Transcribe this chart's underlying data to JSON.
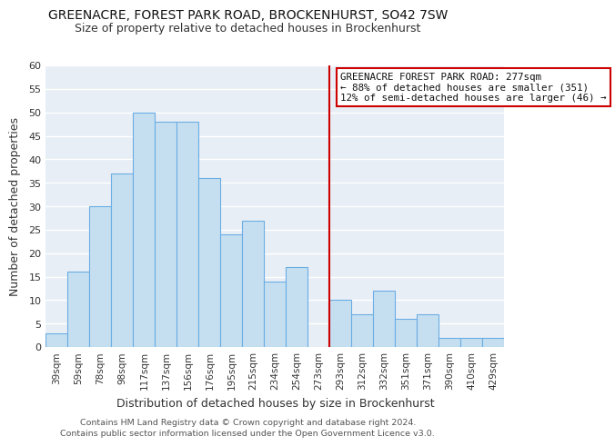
{
  "title": "GREENACRE, FOREST PARK ROAD, BROCKENHURST, SO42 7SW",
  "subtitle": "Size of property relative to detached houses in Brockenhurst",
  "xlabel": "Distribution of detached houses by size in Brockenhurst",
  "ylabel": "Number of detached properties",
  "footer_line1": "Contains HM Land Registry data © Crown copyright and database right 2024.",
  "footer_line2": "Contains public sector information licensed under the Open Government Licence v3.0.",
  "bar_labels": [
    "39sqm",
    "59sqm",
    "78sqm",
    "98sqm",
    "117sqm",
    "137sqm",
    "156sqm",
    "176sqm",
    "195sqm",
    "215sqm",
    "234sqm",
    "254sqm",
    "273sqm",
    "293sqm",
    "312sqm",
    "332sqm",
    "351sqm",
    "371sqm",
    "390sqm",
    "410sqm",
    "429sqm"
  ],
  "bar_values": [
    3,
    16,
    30,
    37,
    50,
    48,
    48,
    36,
    24,
    27,
    14,
    17,
    0,
    10,
    7,
    12,
    6,
    7,
    2,
    2,
    2
  ],
  "bar_color": "#c5dff0",
  "bar_edge_color": "#6aade4",
  "ylim": [
    0,
    60
  ],
  "yticks": [
    0,
    5,
    10,
    15,
    20,
    25,
    30,
    35,
    40,
    45,
    50,
    55,
    60
  ],
  "annotation_title": "GREENACRE FOREST PARK ROAD: 277sqm",
  "annotation_line1": "← 88% of detached houses are smaller (351)",
  "annotation_line2": "12% of semi-detached houses are larger (46) →",
  "annotation_box_edge": "#cc0000",
  "ref_line_color": "#cc0000",
  "background_color": "#ffffff",
  "plot_bg_color": "#e8eef5",
  "grid_color": "#ffffff",
  "title_fontsize": 10,
  "subtitle_fontsize": 9,
  "xlabel_fontsize": 9,
  "ylabel_fontsize": 9,
  "tick_fontsize": 8,
  "xtick_fontsize": 7.5,
  "footer_fontsize": 6.8
}
